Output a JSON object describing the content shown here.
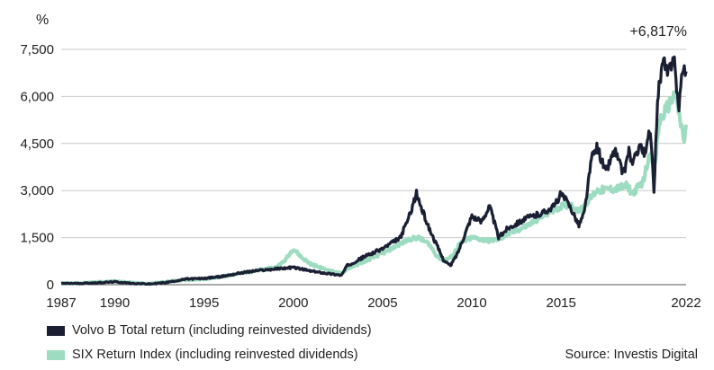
{
  "chart_data": {
    "type": "line",
    "ylabel": "%",
    "ylim": [
      0,
      7500
    ],
    "yticks": [
      0,
      1500,
      3000,
      4500,
      6000,
      7500
    ],
    "ytick_labels": [
      "0",
      "1,500",
      "3,000",
      "4,500",
      "6,000",
      "7,500"
    ],
    "xlim": [
      1987,
      2022
    ],
    "xticks": [
      1987,
      1990,
      1995,
      2000,
      2005,
      2010,
      2015,
      2022
    ],
    "xtick_labels": [
      "1987",
      "1990",
      "1995",
      "2000",
      "2005",
      "2010",
      "2015",
      "2022"
    ],
    "annotation": "+6,817%",
    "grid": "horizontal",
    "legend_position": "bottom-left",
    "series": [
      {
        "name": "SIX Return Index (including reinvested dividends)",
        "color": "#9ddcc0",
        "x": [
          1987,
          1988,
          1989,
          1990,
          1991,
          1992,
          1993,
          1994,
          1995,
          1996,
          1997,
          1998,
          1999,
          1999.5,
          2000,
          2000.5,
          2001,
          2002,
          2002.7,
          2003,
          2004,
          2005,
          2006,
          2006.5,
          2007,
          2007.6,
          2008,
          2008.4,
          2008.9,
          2009.3,
          2010,
          2011,
          2011.5,
          2012,
          2013,
          2014,
          2015,
          2015.5,
          2016,
          2017,
          2018,
          2018.7,
          2019,
          2019.6,
          2020,
          2020.2,
          2020.5,
          2021,
          2021.4,
          2021.7,
          2021.9,
          2022
        ],
        "values": [
          40,
          45,
          80,
          110,
          60,
          30,
          100,
          150,
          180,
          260,
          360,
          450,
          550,
          750,
          1150,
          850,
          650,
          450,
          350,
          500,
          750,
          1000,
          1300,
          1450,
          1500,
          1300,
          950,
          750,
          900,
          1300,
          1500,
          1400,
          1450,
          1600,
          1850,
          2200,
          2500,
          2550,
          2350,
          3000,
          3050,
          3150,
          2900,
          3300,
          4300,
          3500,
          5200,
          5700,
          6100,
          5100,
          4600,
          5100
        ]
      },
      {
        "name": "Volvo B Total return (including reinvested dividends)",
        "color": "#1a1f33",
        "x": [
          1987,
          1988,
          1989,
          1990,
          1991,
          1992,
          1993,
          1994,
          1995,
          1996,
          1997,
          1998,
          1999,
          2000,
          2001,
          2002,
          2002.7,
          2003,
          2004,
          2005,
          2006,
          2006.5,
          2006.9,
          2007.2,
          2007.6,
          2008,
          2008.4,
          2008.8,
          2009.2,
          2009.6,
          2010,
          2010.5,
          2011,
          2011.5,
          2012,
          2013,
          2014,
          2014.6,
          2015,
          2015.5,
          2016,
          2016.3,
          2016.7,
          2017,
          2017.5,
          2018,
          2018.5,
          2018.8,
          2019,
          2019.4,
          2019.7,
          2020,
          2020.2,
          2020.4,
          2020.7,
          2021,
          2021.3,
          2021.6,
          2021.8,
          2022
        ],
        "values": [
          40,
          40,
          60,
          90,
          40,
          20,
          80,
          180,
          200,
          260,
          370,
          450,
          500,
          550,
          430,
          350,
          300,
          600,
          900,
          1150,
          1500,
          2200,
          2900,
          2400,
          1800,
          1300,
          800,
          600,
          1000,
          1600,
          2200,
          2000,
          2500,
          1500,
          1800,
          2100,
          2300,
          2500,
          2900,
          2500,
          1900,
          2300,
          4000,
          4400,
          3600,
          4300,
          3500,
          4300,
          3800,
          4500,
          4100,
          5000,
          2900,
          6000,
          7100,
          6700,
          7400,
          5500,
          7000,
          6800
        ]
      }
    ]
  },
  "legend": {
    "items": [
      {
        "label": "Volvo B Total return (including reinvested dividends)",
        "color": "#1a1f33"
      },
      {
        "label": "SIX Return Index (including reinvested dividends)",
        "color": "#9ddcc0"
      }
    ]
  },
  "source": "Source: Investis Digital"
}
